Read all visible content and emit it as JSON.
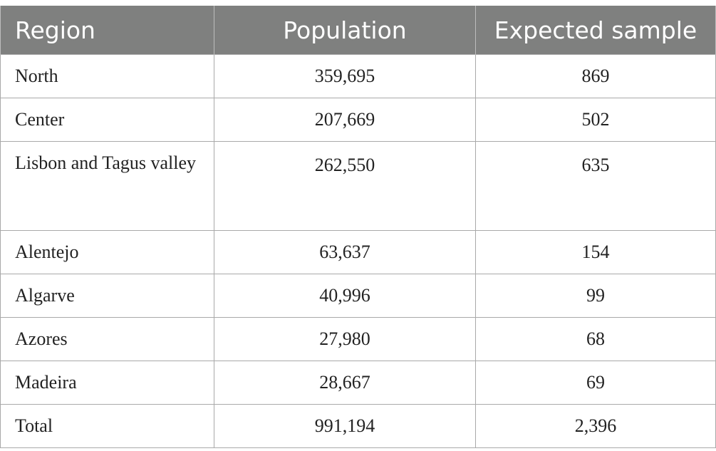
{
  "table": {
    "headers": [
      "Region",
      "Population",
      "Expected sample"
    ],
    "rows": [
      {
        "region": "North",
        "population": "359,695",
        "expected_sample": "869"
      },
      {
        "region": "Center",
        "population": "207,669",
        "expected_sample": "502"
      },
      {
        "region": "Lisbon and Tagus valley",
        "population": "262,550",
        "expected_sample": "635"
      },
      {
        "region": "Alentejo",
        "population": "63,637",
        "expected_sample": "154"
      },
      {
        "region": "Algarve",
        "population": "40,996",
        "expected_sample": "99"
      },
      {
        "region": "Azores",
        "population": "27,980",
        "expected_sample": "68"
      },
      {
        "region": "Madeira",
        "population": "28,667",
        "expected_sample": "69"
      },
      {
        "region": "Total",
        "population": "991,194",
        "expected_sample": "2,396"
      }
    ]
  },
  "colors": {
    "header_background": "#7f807f",
    "header_text": "#ffffff",
    "grid_line": "#a9a9a9"
  }
}
